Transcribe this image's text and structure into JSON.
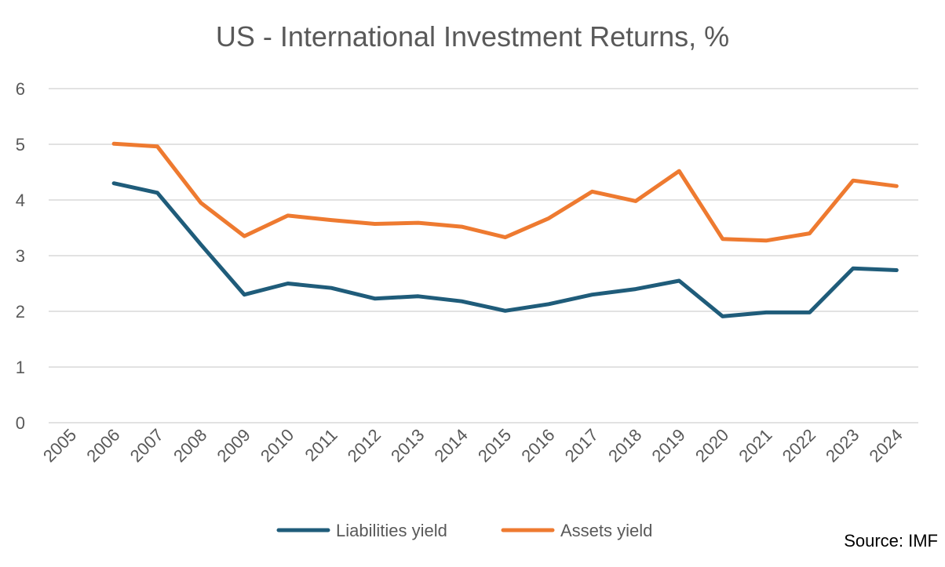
{
  "chart_data": {
    "type": "line",
    "title": "US - International Investment Returns, %",
    "xlabel": "",
    "ylabel": "",
    "categories": [
      "2005",
      "2006",
      "2007",
      "2008",
      "2009",
      "2010",
      "2011",
      "2012",
      "2013",
      "2014",
      "2015",
      "2016",
      "2017",
      "2018",
      "2019",
      "2020",
      "2021",
      "2022",
      "2023",
      "2024"
    ],
    "ylim": [
      0,
      6
    ],
    "yticks": [
      0,
      1,
      2,
      3,
      4,
      5,
      6
    ],
    "grid": true,
    "legend_position": "bottom",
    "series": [
      {
        "name": "Liabilities yield",
        "color": "#1F5C7A",
        "values": [
          null,
          4.3,
          4.13,
          3.2,
          2.3,
          2.5,
          2.42,
          2.23,
          2.27,
          2.18,
          2.01,
          2.13,
          2.3,
          2.4,
          2.55,
          1.91,
          1.98,
          1.98,
          2.77,
          2.74
        ]
      },
      {
        "name": "Assets yield",
        "color": "#EE7A30",
        "values": [
          null,
          5.01,
          4.96,
          3.95,
          3.35,
          3.72,
          3.64,
          3.57,
          3.59,
          3.52,
          3.33,
          3.67,
          4.15,
          3.98,
          4.52,
          3.3,
          3.27,
          3.4,
          4.35,
          4.25
        ]
      }
    ],
    "annotations": [
      "Source: IMF"
    ]
  }
}
